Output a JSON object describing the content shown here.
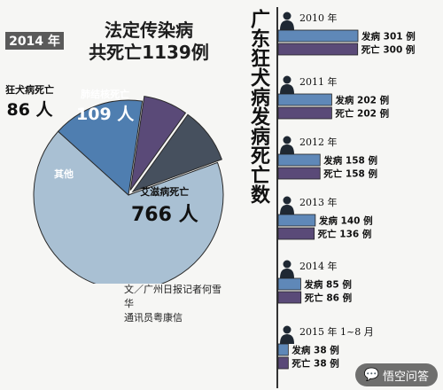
{
  "badge": "2014 年",
  "left_title": [
    "法定传染病",
    "共死亡1139例"
  ],
  "credit": [
    "文／广州日报记者何雪华",
    "通讯员粤康信"
  ],
  "right_title": "广东狂犬病发病死亡数",
  "watermark": "悟空问答",
  "pie_labels": {
    "rabies": {
      "name": "狂犬病死亡",
      "value": "86 人"
    },
    "tb": {
      "name": "肺结核死亡",
      "value": "109 人"
    },
    "other": {
      "name": "其他",
      "value": ""
    },
    "aids": {
      "name": "艾滋病死亡",
      "value": "766 人"
    }
  },
  "chart_data": [
    {
      "type": "pie",
      "title": "法定传染病共死亡1139例",
      "slices": [
        {
          "label": "艾滋病死亡",
          "value": 766,
          "color": "#a9c0d3"
        },
        {
          "label": "其他",
          "value": 178,
          "color": "#4f7eb0"
        },
        {
          "label": "狂犬病死亡",
          "value": 86,
          "color": "#5a4a78"
        },
        {
          "label": "肺结核死亡",
          "value": 109,
          "color": "#46505e"
        }
      ]
    },
    {
      "type": "bar",
      "title": "广东狂犬病发病死亡数",
      "categories": [
        "2010 年",
        "2011 年",
        "2012 年",
        "2013 年",
        "2014 年",
        "2015 年 1~8 月"
      ],
      "series": [
        {
          "name": "发病",
          "values": [
            301,
            202,
            158,
            140,
            85,
            38
          ],
          "color": "#5f88b8",
          "labels": [
            "发病 301 例",
            "发病 202 例",
            "发病 158 例",
            "发病 140 例",
            "发病 85 例",
            "发病 38 例"
          ]
        },
        {
          "name": "死亡",
          "values": [
            300,
            202,
            158,
            136,
            86,
            38
          ],
          "color": "#5a4a78",
          "labels": [
            "死亡 300 例",
            "死亡 202 例",
            "死亡 158 例",
            "死亡 136 例",
            "死亡 86 例",
            "死亡 38 例"
          ]
        }
      ]
    }
  ]
}
